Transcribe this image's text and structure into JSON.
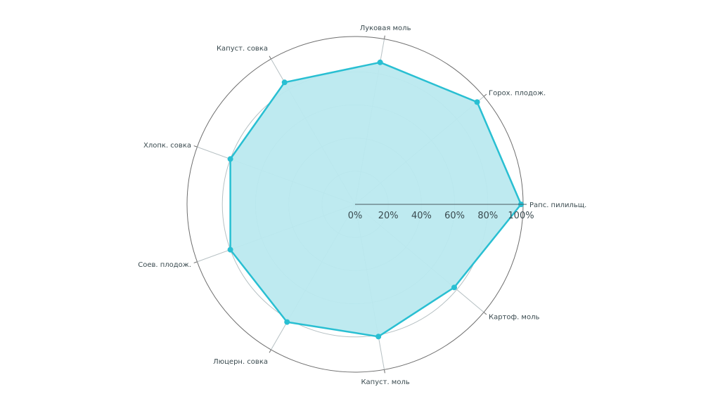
{
  "colors": {
    "series": "#29bfd2",
    "fill": "#bbe9ef",
    "grid": "#b6c0c3",
    "outer_ring": "#6e6e6e",
    "axis_line": "#4a5a60",
    "text": "#3a4a4f"
  },
  "chart_data": {
    "type": "radar",
    "title": "",
    "categories": [
      "Рапс. пилильщ.",
      "Горох. плодож.",
      "Луковая моль",
      "Капуст. совка",
      "Хлопк. совка",
      "Соев. плодож.",
      "Люцерн. совка",
      "Капуст. моль",
      "Картоф. моль"
    ],
    "series": [
      {
        "values": [
          100,
          96,
          87,
          85,
          80,
          80,
          82,
          81,
          78
        ]
      }
    ],
    "radial_axis": {
      "min": 0,
      "max": 100,
      "ticks": [
        0,
        20,
        40,
        60,
        80,
        100
      ],
      "tick_labels": [
        "0%",
        "20%",
        "40%",
        "60%",
        "80%",
        "100%"
      ]
    },
    "grid": true,
    "legend": "none"
  }
}
